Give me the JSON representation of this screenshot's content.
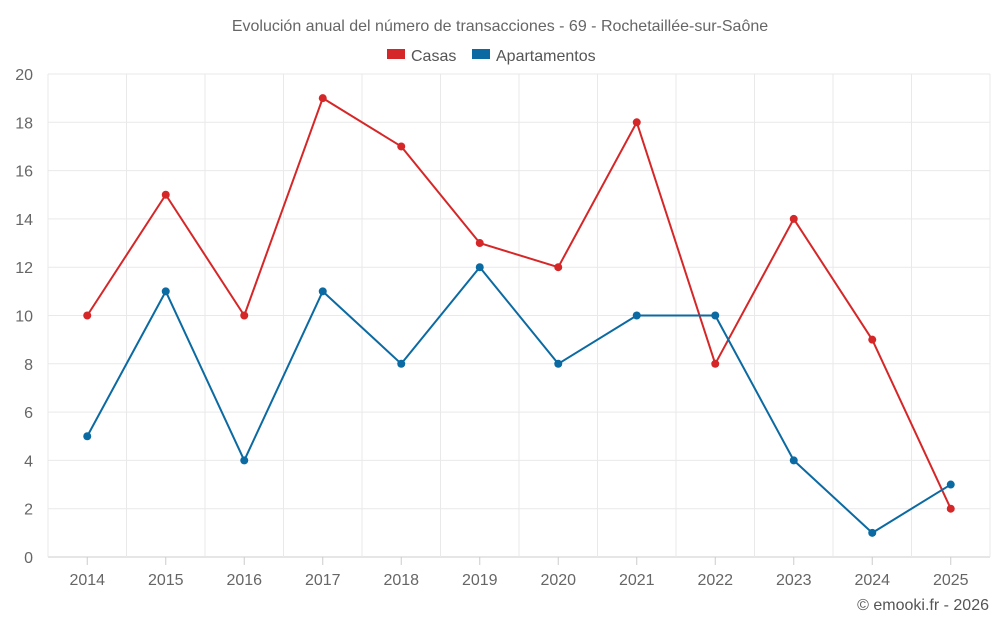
{
  "chart_data": {
    "type": "line",
    "title": "Evolución anual del número de transacciones - 69 - Rochetaillée-sur-Saône",
    "categories": [
      "2014",
      "2015",
      "2016",
      "2017",
      "2018",
      "2019",
      "2020",
      "2021",
      "2022",
      "2023",
      "2024",
      "2025"
    ],
    "series": [
      {
        "name": "Casas",
        "color": "#d62728",
        "values": [
          10,
          15,
          10,
          19,
          17,
          13,
          12,
          18,
          8,
          14,
          9,
          2
        ]
      },
      {
        "name": "Apartamentos",
        "color": "#0b6aa2",
        "values": [
          5,
          11,
          4,
          11,
          8,
          12,
          8,
          10,
          10,
          4,
          1,
          3
        ]
      }
    ],
    "ylim": [
      0,
      20
    ],
    "yticks": [
      0,
      2,
      4,
      6,
      8,
      10,
      12,
      14,
      16,
      18,
      20
    ],
    "xlabel": "",
    "ylabel": "",
    "grid": true,
    "legend_position": "top-center"
  },
  "credit": "© emooki.fr - 2026"
}
